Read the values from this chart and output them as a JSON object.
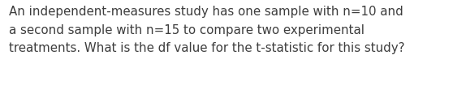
{
  "text": "An independent-measures study has one sample with n=10 and\na second sample with n=15 to compare two experimental\ntreatments. What is the df value for the t-statistic for this study?",
  "background_color": "#ffffff",
  "text_color": "#3d3d3d",
  "font_size": 10.8,
  "fig_width": 5.58,
  "fig_height": 1.05,
  "dpi": 100
}
